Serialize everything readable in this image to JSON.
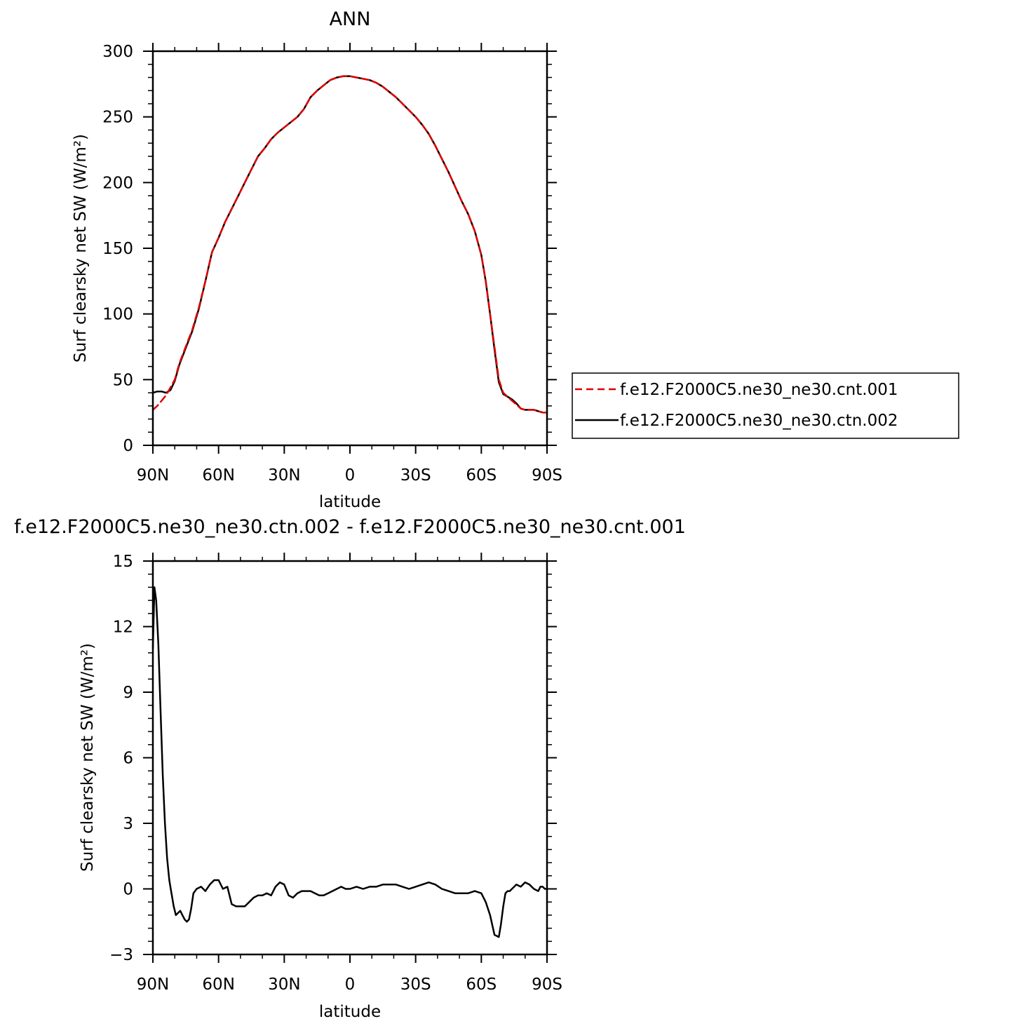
{
  "chart_data": [
    {
      "type": "line",
      "title": "ANN",
      "xlabel": "latitude",
      "ylabel": "Surf clearsky net SW (W/m²)",
      "xlim": [
        90,
        -90
      ],
      "ylim": [
        0,
        300
      ],
      "x_ticks": [
        {
          "v": 90,
          "label": "90N"
        },
        {
          "v": 60,
          "label": "60N"
        },
        {
          "v": 30,
          "label": "30N"
        },
        {
          "v": 0,
          "label": "0"
        },
        {
          "v": -30,
          "label": "30S"
        },
        {
          "v": -60,
          "label": "60S"
        },
        {
          "v": -90,
          "label": "90S"
        }
      ],
      "y_ticks": [
        {
          "v": 0,
          "label": "0"
        },
        {
          "v": 50,
          "label": "50"
        },
        {
          "v": 100,
          "label": "100"
        },
        {
          "v": 150,
          "label": "150"
        },
        {
          "v": 200,
          "label": "200"
        },
        {
          "v": 250,
          "label": "250"
        },
        {
          "v": 300,
          "label": "300"
        }
      ],
      "legend_position": "right",
      "grid": false,
      "series": [
        {
          "name": "f.e12.F2000C5.ne30_ne30.cnt.001",
          "color": "#e00000",
          "dash": "dashed",
          "x": [
            90,
            88,
            86,
            84,
            82,
            80,
            78,
            75,
            72,
            69,
            66,
            63,
            60,
            57,
            54,
            51,
            48,
            45,
            42,
            39,
            36,
            33,
            30,
            27,
            24,
            21,
            18,
            15,
            12,
            9,
            6,
            3,
            0,
            -3,
            -6,
            -9,
            -12,
            -15,
            -18,
            -21,
            -24,
            -27,
            -30,
            -33,
            -36,
            -39,
            -42,
            -45,
            -48,
            -51,
            -54,
            -57,
            -60,
            -62,
            -64,
            -66,
            -68,
            -70,
            -72,
            -74,
            -76,
            -78,
            -80,
            -82,
            -84,
            -86,
            -88,
            -90
          ],
          "y": [
            27,
            30,
            34,
            38,
            44,
            50,
            62,
            75,
            88,
            105,
            125,
            147,
            158,
            170,
            180,
            190,
            200,
            210,
            220,
            226,
            233,
            238,
            242,
            246,
            250,
            256,
            265,
            270,
            274,
            278,
            280,
            281,
            281,
            280,
            279,
            278,
            276,
            273,
            269,
            265,
            260,
            255,
            250,
            244,
            237,
            228,
            218,
            208,
            197,
            186,
            176,
            163,
            145,
            125,
            100,
            75,
            50,
            40,
            37,
            34,
            31,
            28,
            27,
            27,
            27,
            26,
            25,
            25
          ]
        },
        {
          "name": "f.e12.F2000C5.ne30_ne30.ctn.002",
          "color": "#000000",
          "dash": "solid",
          "x": [
            90,
            88,
            86,
            84,
            82,
            80,
            78,
            75,
            72,
            69,
            66,
            63,
            60,
            57,
            54,
            51,
            48,
            45,
            42,
            39,
            36,
            33,
            30,
            27,
            24,
            21,
            18,
            15,
            12,
            9,
            6,
            3,
            0,
            -3,
            -6,
            -9,
            -12,
            -15,
            -18,
            -21,
            -24,
            -27,
            -30,
            -33,
            -36,
            -39,
            -42,
            -45,
            -48,
            -51,
            -54,
            -57,
            -60,
            -62,
            -64,
            -66,
            -68,
            -70,
            -72,
            -74,
            -76,
            -78,
            -80,
            -82,
            -84,
            -86,
            -88,
            -90
          ],
          "y": [
            40,
            41,
            41,
            40,
            42,
            49,
            61,
            74,
            87,
            104,
            125,
            147,
            158,
            170,
            180,
            190,
            200,
            210,
            220,
            226,
            233,
            238,
            242,
            246,
            250,
            256,
            265,
            270,
            274,
            278,
            280,
            281,
            281,
            280,
            279,
            278,
            276,
            273,
            269,
            265,
            260,
            255,
            250,
            244,
            237,
            228,
            218,
            208,
            197,
            186,
            176,
            163,
            145,
            125,
            100,
            73,
            48,
            39,
            37,
            35,
            32,
            28,
            27,
            27,
            27,
            26,
            25,
            25
          ]
        }
      ]
    },
    {
      "type": "line",
      "title": "f.e12.F2000C5.ne30_ne30.ctn.002 - f.e12.F2000C5.ne30_ne30.cnt.001",
      "xlabel": "latitude",
      "ylabel": "Surf clearsky net SW (W/m²)",
      "xlim": [
        90,
        -90
      ],
      "ylim": [
        -3,
        15
      ],
      "x_ticks": [
        {
          "v": 90,
          "label": "90N"
        },
        {
          "v": 60,
          "label": "60N"
        },
        {
          "v": 30,
          "label": "30N"
        },
        {
          "v": 0,
          "label": "0"
        },
        {
          "v": -30,
          "label": "30S"
        },
        {
          "v": -60,
          "label": "60S"
        },
        {
          "v": -90,
          "label": "90S"
        }
      ],
      "y_ticks": [
        {
          "v": -3,
          "label": "−3"
        },
        {
          "v": 0,
          "label": "0"
        },
        {
          "v": 3,
          "label": "3"
        },
        {
          "v": 6,
          "label": "6"
        },
        {
          "v": 9,
          "label": "9"
        },
        {
          "v": 12,
          "label": "12"
        },
        {
          "v": 15,
          "label": "15"
        }
      ],
      "grid": false,
      "series": [
        {
          "color": "#000000",
          "dash": "solid",
          "x": [
            90,
            89.3,
            88.5,
            87.5,
            86.5,
            85.5,
            84.5,
            83.5,
            82.5,
            81.5,
            80.5,
            79.5,
            78.5,
            77.5,
            76.5,
            75.5,
            74.5,
            73.5,
            72.5,
            71.5,
            70,
            68,
            66,
            64,
            62,
            60,
            58,
            56,
            54,
            52,
            50,
            48,
            46,
            44,
            42,
            40,
            38,
            36,
            34,
            32,
            30,
            28,
            26,
            24,
            22,
            20,
            18,
            16,
            14,
            12,
            10,
            8,
            6,
            4,
            2,
            0,
            -3,
            -6,
            -9,
            -12,
            -15,
            -18,
            -21,
            -24,
            -27,
            -30,
            -33,
            -36,
            -39,
            -42,
            -45,
            -48,
            -51,
            -54,
            -57,
            -60,
            -62,
            -64,
            -66,
            -68,
            -69,
            -70,
            -71,
            -72,
            -73,
            -74,
            -75,
            -76,
            -78,
            -80,
            -82,
            -84,
            -86,
            -87,
            -88,
            -89,
            -90
          ],
          "y": [
            11,
            13.8,
            13.2,
            11.2,
            8.2,
            5.2,
            3,
            1.4,
            0.4,
            -0.2,
            -0.8,
            -1.2,
            -1.1,
            -1.0,
            -1.2,
            -1.4,
            -1.5,
            -1.4,
            -0.9,
            -0.2,
            0,
            0.1,
            -0.1,
            0.2,
            0.4,
            0.4,
            0,
            0.1,
            -0.7,
            -0.8,
            -0.8,
            -0.8,
            -0.6,
            -0.4,
            -0.3,
            -0.3,
            -0.2,
            -0.3,
            0.1,
            0.3,
            0.2,
            -0.3,
            -0.4,
            -0.2,
            -0.1,
            -0.1,
            -0.1,
            -0.2,
            -0.3,
            -0.3,
            -0.2,
            -0.1,
            0,
            0.1,
            0,
            0,
            0.1,
            0,
            0.1,
            0.1,
            0.2,
            0.2,
            0.2,
            0.1,
            0,
            0.1,
            0.2,
            0.3,
            0.2,
            0,
            -0.1,
            -0.2,
            -0.2,
            -0.2,
            -0.1,
            -0.2,
            -0.6,
            -1.2,
            -2.1,
            -2.2,
            -1.6,
            -0.8,
            -0.2,
            -0.1,
            -0.1,
            0,
            0.1,
            0.2,
            0.1,
            0.3,
            0.2,
            0,
            -0.1,
            0.1,
            0.1,
            0,
            0
          ]
        }
      ]
    }
  ]
}
